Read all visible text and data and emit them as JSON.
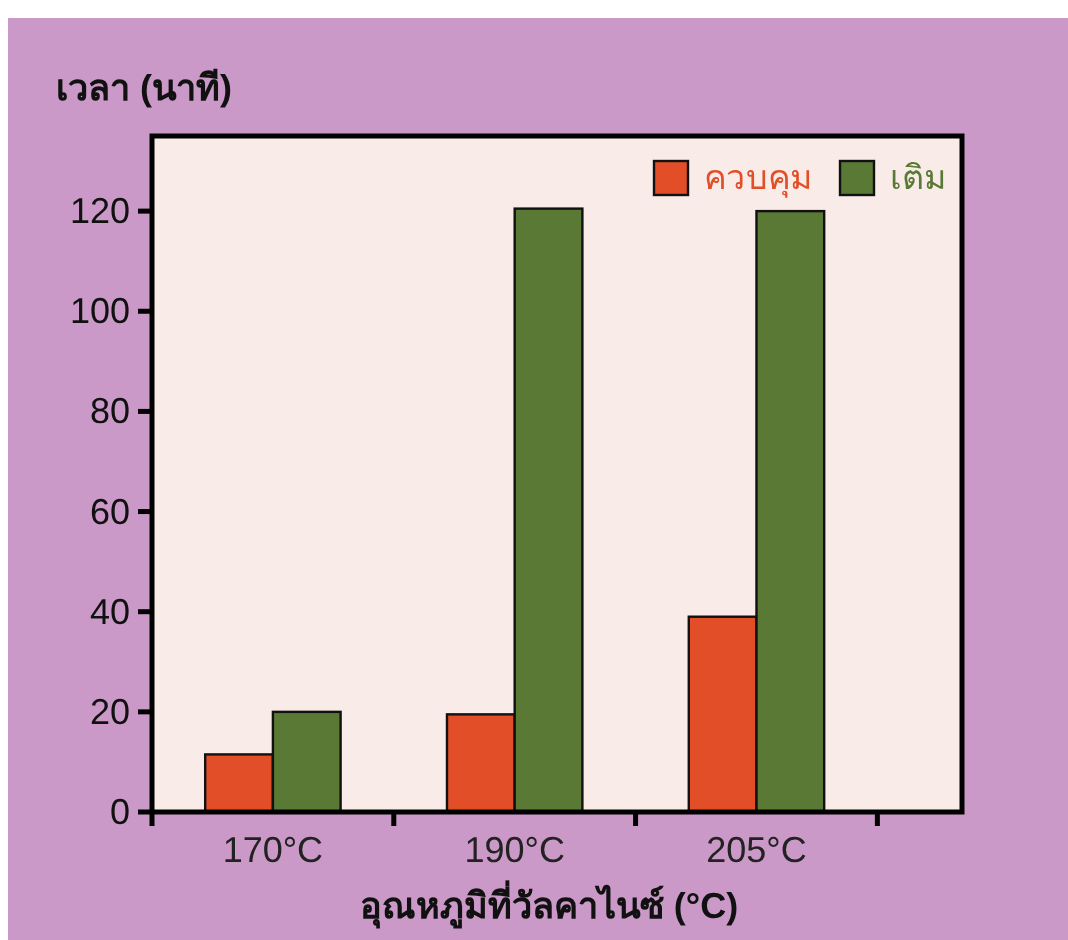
{
  "chart_data": {
    "type": "bar",
    "categories": [
      "170°C",
      "190°C",
      "205°C"
    ],
    "xlabel": "อุณหภูมิที่วัลคาไนซ์ (°C)",
    "ylabel": "เวลา (นาที)",
    "ylim": [
      0,
      135
    ],
    "yticks": [
      0,
      20,
      40,
      60,
      80,
      100,
      120
    ],
    "series": [
      {
        "name": "ควบคุม",
        "color": "#e24e28",
        "values": [
          11.5,
          19.5,
          39
        ]
      },
      {
        "name": "เติม",
        "color": "#597935",
        "values": [
          20,
          120.5,
          120
        ]
      }
    ],
    "legend": "top right"
  }
}
